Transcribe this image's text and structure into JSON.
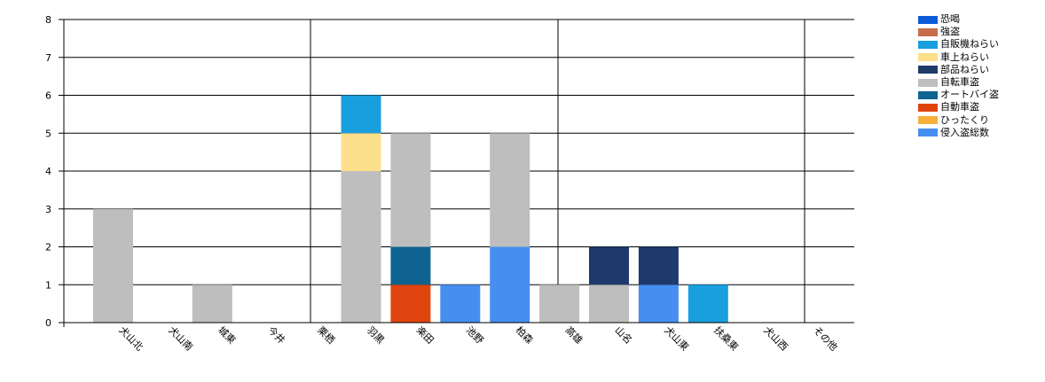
{
  "chart_data": {
    "type": "bar",
    "stacked": true,
    "categories": [
      "犬山北",
      "犬山南",
      "城東",
      "今井",
      "栗栖",
      "羽黒",
      "楽田",
      "池野",
      "柏森",
      "高雄",
      "山名",
      "犬山東",
      "扶桑東",
      "犬山西",
      "その他"
    ],
    "series": [
      {
        "name": "恐喝",
        "color": "#0d5bd6",
        "values": [
          0,
          0,
          0,
          0,
          0,
          0,
          0,
          0,
          0,
          0,
          0,
          0,
          0,
          0,
          0
        ]
      },
      {
        "name": "強盗",
        "color": "#c86b4c",
        "values": [
          0,
          0,
          0,
          0,
          0,
          0,
          0,
          0,
          0,
          0,
          0,
          0,
          0,
          0,
          0
        ]
      },
      {
        "name": "侵入盗総数",
        "color": "#468ef0",
        "values": [
          0,
          0,
          0,
          0,
          0,
          0,
          0,
          1,
          2,
          0,
          0,
          1,
          0,
          0,
          0
        ]
      },
      {
        "name": "自動車盗",
        "color": "#e0440e",
        "values": [
          0,
          0,
          0,
          0,
          0,
          0,
          1,
          0,
          0,
          0,
          0,
          0,
          0,
          0,
          0
        ]
      },
      {
        "name": "ひったくり",
        "color": "#f6b13b",
        "values": [
          0,
          0,
          0,
          0,
          0,
          0,
          0,
          0,
          0,
          0,
          0,
          0,
          0,
          0,
          0
        ]
      },
      {
        "name": "オートバイ盗",
        "color": "#0f6390",
        "values": [
          0,
          0,
          0,
          0,
          0,
          0,
          1,
          0,
          0,
          0,
          0,
          0,
          0,
          0,
          0
        ]
      },
      {
        "name": "自転車盗",
        "color": "#bebebe",
        "values": [
          3,
          0,
          1,
          0,
          0,
          4,
          3,
          0,
          3,
          1,
          1,
          0,
          0,
          0,
          0
        ]
      },
      {
        "name": "部品ねらい",
        "color": "#1e3a6b",
        "values": [
          0,
          0,
          0,
          0,
          0,
          0,
          0,
          0,
          0,
          0,
          1,
          1,
          0,
          0,
          0
        ]
      },
      {
        "name": "車上ねらい",
        "color": "#fde08b",
        "values": [
          0,
          0,
          0,
          0,
          0,
          1,
          0,
          0,
          0,
          0,
          0,
          0,
          0,
          0,
          0
        ]
      },
      {
        "name": "自販機ねらい",
        "color": "#1a9fde",
        "values": [
          0,
          0,
          0,
          0,
          0,
          1,
          0,
          0,
          0,
          0,
          0,
          0,
          1,
          0,
          0
        ]
      }
    ],
    "legend_order": [
      "恐喝",
      "強盗",
      "自販機ねらい",
      "車上ねらい",
      "部品ねらい",
      "自転車盗",
      "オートバイ盗",
      "自動車盗",
      "ひったくり",
      "侵入盗総数"
    ],
    "ylim": [
      0,
      8
    ],
    "yticks": [
      "0",
      "1",
      "2",
      "3",
      "4",
      "5",
      "6",
      "7",
      "8"
    ],
    "grid": true,
    "legend_position": "top-right",
    "title": "",
    "xlabel": "",
    "ylabel": ""
  }
}
